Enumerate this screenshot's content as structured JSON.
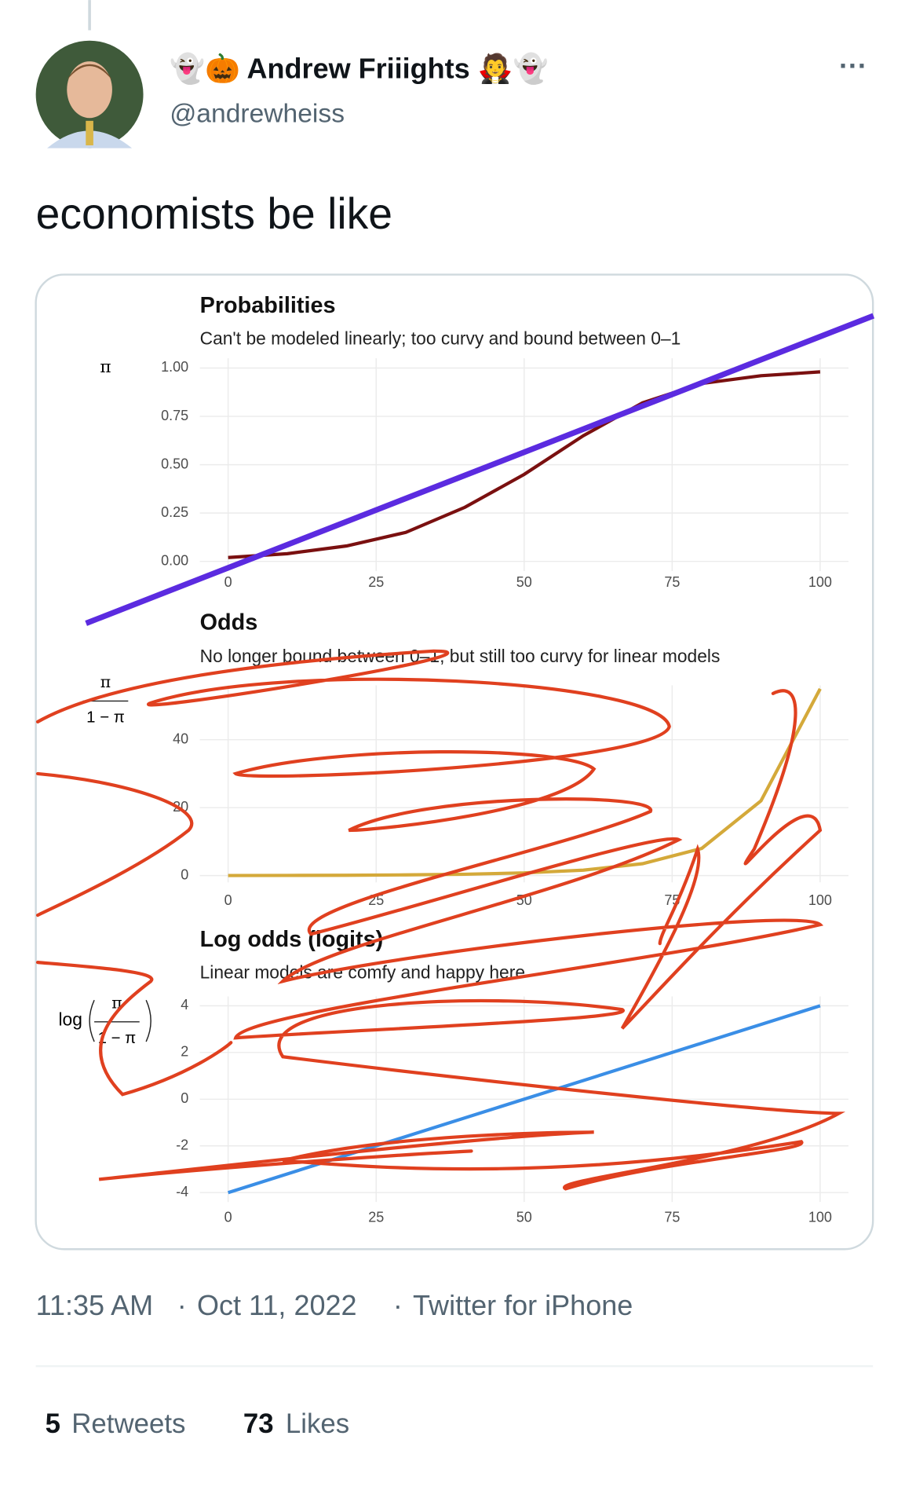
{
  "header": {
    "name": "👻🎃 Andrew Friiights 🧛👻",
    "handle": "@andrewheiss",
    "more": "···"
  },
  "tweet": {
    "text": "economists be like"
  },
  "chart_data": [
    {
      "type": "line",
      "title": "Probabilities",
      "subtitle": "Can't be modeled linearly; too curvy and bound between 0–1",
      "ylabel": "π",
      "xlim": [
        0,
        100
      ],
      "ylim": [
        -0.05,
        1.05
      ],
      "xticks": [
        0,
        25,
        50,
        75,
        100
      ],
      "yticks": [
        {
          "value": 0,
          "label": "0.00"
        },
        {
          "value": 0.25,
          "label": "0.25"
        },
        {
          "value": 0.5,
          "label": "0.50"
        },
        {
          "value": 0.75,
          "label": "0.75"
        },
        {
          "value": 1,
          "label": "1.00"
        }
      ],
      "grid": true,
      "series": [
        {
          "color": "#7a1010",
          "x": [
            0,
            10,
            20,
            30,
            40,
            50,
            60,
            70,
            80,
            90,
            100
          ],
          "values": [
            0.02,
            0.04,
            0.08,
            0.15,
            0.28,
            0.45,
            0.65,
            0.82,
            0.92,
            0.96,
            0.98
          ]
        },
        {
          "color": "#5b2be0",
          "x": [
            -24,
            109
          ],
          "values": [
            -0.32,
            1.27
          ]
        }
      ]
    },
    {
      "type": "line",
      "title": "Odds",
      "subtitle": "No longer bound between 0–1, but still too curvy for linear models",
      "ylabel_numerator": "π",
      "ylabel_denominator": "1 − π",
      "xlim": [
        0,
        100
      ],
      "ylim": [
        -2,
        56
      ],
      "xticks": [
        0,
        25,
        50,
        75,
        100
      ],
      "yticks": [
        0,
        20,
        40
      ],
      "grid": true,
      "series": [
        {
          "color": "#d4a93a",
          "x": [
            0,
            10,
            20,
            30,
            40,
            50,
            60,
            70,
            80,
            90,
            100
          ],
          "values": [
            0.02,
            0.05,
            0.1,
            0.2,
            0.4,
            0.8,
            1.6,
            3.5,
            8,
            22,
            55
          ]
        }
      ]
    },
    {
      "type": "line",
      "title": "Log odds (logits)",
      "subtitle": "Linear models are comfy and happy here",
      "ylabel_prefix": "log",
      "ylabel_numerator": "π",
      "ylabel_denominator": "1 − π",
      "xlim": [
        0,
        100
      ],
      "ylim": [
        -4.4,
        4.4
      ],
      "xticks": [
        0,
        25,
        50,
        75,
        100
      ],
      "yticks": [
        -4,
        -2,
        0,
        2,
        4
      ],
      "grid": true,
      "series": [
        {
          "color": "#3a8ee6",
          "x": [
            0,
            100
          ],
          "values": [
            -4,
            4
          ]
        }
      ]
    }
  ],
  "footer": {
    "time": "11:35 AM",
    "date": "Oct 11, 2022",
    "source": "Twitter for iPhone",
    "separator": "·",
    "retweets_count": "5",
    "retweets_label": "Retweets",
    "likes_count": "73",
    "likes_label": "Likes"
  }
}
